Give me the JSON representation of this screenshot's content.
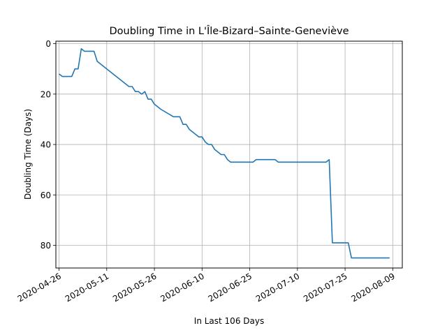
{
  "chart_data": {
    "type": "line",
    "title": "Doubling Time in  L'Île-Bizard–Sainte-Geneviève",
    "xlabel": "In Last 106 Days",
    "ylabel": "Doubling Time (Days)",
    "x_is_date": true,
    "xlim": [
      "2020-04-25",
      "2020-08-12"
    ],
    "ylim": [
      89,
      -1
    ],
    "y_inverted": true,
    "grid": true,
    "line_color": "#1f77b4",
    "x_ticks": [
      "2020-04-26",
      "2020-05-11",
      "2020-05-26",
      "2020-06-10",
      "2020-06-25",
      "2020-07-10",
      "2020-07-25",
      "2020-08-09"
    ],
    "y_ticks": [
      0,
      20,
      40,
      60,
      80
    ],
    "series": [
      {
        "x": [
          "2020-04-26",
          "2020-04-27",
          "2020-04-30",
          "2020-05-01",
          "2020-05-02",
          "2020-05-03",
          "2020-05-04",
          "2020-05-07",
          "2020-05-08",
          "2020-05-11",
          "2020-05-12",
          "2020-05-18",
          "2020-05-19",
          "2020-05-20",
          "2020-05-21",
          "2020-05-22",
          "2020-05-23",
          "2020-05-24",
          "2020-05-25",
          "2020-05-26",
          "2020-05-27",
          "2020-05-28",
          "2020-06-01",
          "2020-06-03",
          "2020-06-04",
          "2020-06-05",
          "2020-06-06",
          "2020-06-07",
          "2020-06-08",
          "2020-06-09",
          "2020-06-10",
          "2020-06-11",
          "2020-06-12",
          "2020-06-13",
          "2020-06-14",
          "2020-06-15",
          "2020-06-16",
          "2020-06-17",
          "2020-06-18",
          "2020-06-19",
          "2020-06-20",
          "2020-06-26",
          "2020-06-27",
          "2020-07-03",
          "2020-07-04",
          "2020-07-19",
          "2020-07-20",
          "2020-07-21",
          "2020-07-26",
          "2020-07-27",
          "2020-08-08"
        ],
        "y": [
          12,
          13,
          13,
          10,
          10,
          2,
          3,
          3,
          7,
          10,
          11,
          17,
          17,
          19,
          19,
          20,
          19,
          22,
          22,
          24,
          25,
          26,
          29,
          29,
          32,
          32,
          34,
          35,
          36,
          37,
          37,
          39,
          40,
          40,
          42,
          43,
          44,
          44,
          46,
          47,
          47,
          47,
          46,
          46,
          47,
          47,
          46,
          79,
          79,
          85,
          85
        ]
      }
    ]
  }
}
